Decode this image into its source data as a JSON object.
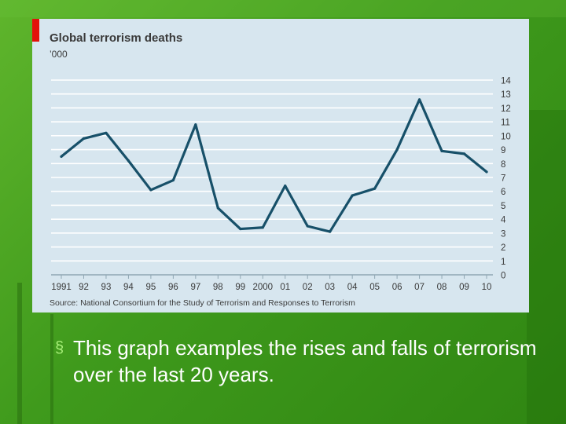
{
  "slide": {
    "bullet_symbol": "§",
    "bullet_text": "This graph examples the rises and falls of terrorism over the last 20 years."
  },
  "chart_data": {
    "type": "line",
    "title": "Global terrorism deaths",
    "subtitle": "’000",
    "source": "Source: National Consortium for the Study of Terrorism and Responses to Terrorism",
    "x_tick_labels": [
      "1991",
      "92",
      "93",
      "94",
      "95",
      "96",
      "97",
      "98",
      "99",
      "2000",
      "01",
      "02",
      "03",
      "04",
      "05",
      "06",
      "07",
      "08",
      "09",
      "10"
    ],
    "y_tick_labels": [
      "0",
      "1",
      "2",
      "3",
      "4",
      "5",
      "6",
      "7",
      "8",
      "9",
      "10",
      "11",
      "12",
      "13",
      "14"
    ],
    "ylim": [
      0,
      14
    ],
    "y_axis_side": "right",
    "grid": true,
    "colors": {
      "line": "#175069",
      "background": "#d7e6ef",
      "grid": "#ffffff",
      "accent": "#e3120b",
      "text": "#3a3a3a"
    },
    "series": [
      {
        "values": [
          8.5,
          9.8,
          10.2,
          8.2,
          6.1,
          6.8,
          10.8,
          4.8,
          3.3,
          3.4,
          6.4,
          3.5,
          3.1,
          5.7,
          6.2,
          9.0,
          12.6,
          8.9,
          8.7,
          7.4
        ]
      }
    ]
  }
}
